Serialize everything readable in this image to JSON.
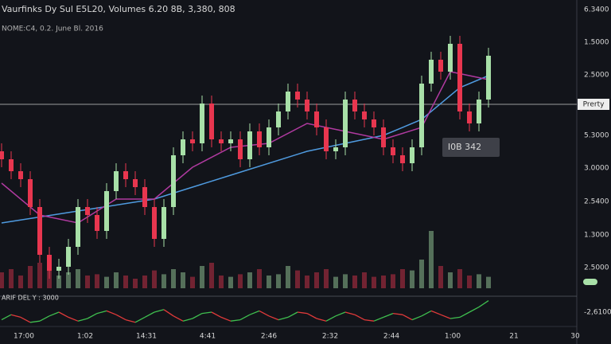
{
  "header": {
    "line1": "Vaurfinks Dy Sul E5L20, Volumes 6.20 8B, 3,380, 808",
    "line2": "NOME:C4, 0.2. June Bl. 2016"
  },
  "price_axis_labels": [
    "6.3400",
    "1.5000",
    "2.5000",
    "5.3000",
    "3.0000",
    "2.5400",
    "1.3000",
    "2.5000",
    "-2,6100"
  ],
  "time_axis_labels": [
    "17:00",
    "1:02",
    "14:31",
    "4:41",
    "2:46",
    "2:32",
    "2:44",
    "1:00",
    "21",
    "30"
  ],
  "crosshair_tag": "Prerty",
  "price_tag": "I0B 342",
  "indicator_label": "ARIF DEL Y : 3000",
  "chart_data": {
    "type": "candlestick",
    "open": [
      170,
      160,
      145,
      135,
      100,
      40,
      20,
      25,
      50,
      100,
      90,
      70,
      120,
      145,
      135,
      125,
      100,
      60,
      100,
      165,
      185,
      180,
      230,
      185,
      180,
      185,
      160,
      195,
      175,
      200,
      220,
      245,
      235,
      220,
      200,
      170,
      175,
      235,
      220,
      210,
      200,
      175,
      165,
      155,
      175,
      255,
      285,
      270,
      305,
      220,
      205,
      235
    ],
    "high": [
      180,
      170,
      155,
      145,
      110,
      50,
      35,
      60,
      110,
      110,
      100,
      130,
      155,
      155,
      145,
      135,
      110,
      110,
      175,
      195,
      195,
      240,
      240,
      195,
      195,
      195,
      205,
      205,
      210,
      230,
      255,
      255,
      245,
      230,
      210,
      185,
      245,
      245,
      230,
      220,
      210,
      185,
      175,
      185,
      265,
      295,
      295,
      315,
      315,
      230,
      245,
      300
    ],
    "low": [
      150,
      135,
      125,
      90,
      30,
      10,
      10,
      15,
      40,
      80,
      60,
      60,
      110,
      125,
      115,
      90,
      50,
      50,
      90,
      155,
      170,
      170,
      175,
      170,
      170,
      150,
      150,
      165,
      165,
      190,
      210,
      225,
      210,
      190,
      160,
      160,
      165,
      210,
      200,
      190,
      165,
      155,
      145,
      145,
      165,
      245,
      260,
      260,
      210,
      195,
      195,
      225
    ],
    "close": [
      160,
      145,
      135,
      100,
      40,
      20,
      25,
      50,
      100,
      90,
      70,
      120,
      145,
      135,
      125,
      100,
      60,
      100,
      165,
      185,
      180,
      230,
      185,
      180,
      185,
      160,
      195,
      175,
      200,
      220,
      245,
      235,
      220,
      200,
      170,
      175,
      235,
      220,
      210,
      200,
      175,
      165,
      155,
      175,
      255,
      285,
      270,
      305,
      220,
      205,
      235,
      290
    ],
    "up_color": "#a8e0a8",
    "down_color": "#e8364f",
    "ylim": [
      0,
      340
    ],
    "overlays": [
      {
        "color": "#4f9be0",
        "index": [
          0,
          8,
          16,
          24,
          32,
          40,
          44,
          48,
          51
        ],
        "values": [
          80,
          95,
          110,
          140,
          170,
          190,
          210,
          250,
          265
        ]
      },
      {
        "color": "#b03aa0",
        "index": [
          0,
          4,
          8,
          12,
          16,
          20,
          24,
          28,
          32,
          36,
          40,
          44,
          47,
          51
        ],
        "values": [
          130,
          90,
          80,
          110,
          110,
          150,
          175,
          180,
          205,
          195,
          185,
          200,
          270,
          260
        ]
      }
    ],
    "volume": {
      "ylim": [
        0,
        100
      ],
      "values": [
        25,
        30,
        20,
        35,
        40,
        30,
        20,
        25,
        30,
        20,
        22,
        18,
        25,
        20,
        15,
        20,
        28,
        22,
        30,
        25,
        18,
        35,
        40,
        20,
        18,
        22,
        25,
        30,
        20,
        22,
        35,
        28,
        20,
        25,
        30,
        18,
        22,
        20,
        25,
        18,
        20,
        22,
        30,
        28,
        45,
        90,
        35,
        25,
        30,
        20,
        22,
        18
      ]
    },
    "oscillator": {
      "ylim": [
        0,
        100
      ],
      "up_color": "#3fbf4f",
      "down_color": "#e03a3a",
      "values": [
        20,
        40,
        30,
        10,
        15,
        35,
        50,
        30,
        15,
        25,
        45,
        55,
        40,
        20,
        10,
        30,
        50,
        60,
        35,
        15,
        25,
        45,
        50,
        30,
        15,
        20,
        40,
        55,
        35,
        20,
        30,
        50,
        45,
        25,
        15,
        35,
        50,
        40,
        20,
        15,
        30,
        45,
        40,
        20,
        35,
        55,
        40,
        25,
        30,
        50,
        70,
        95
      ]
    }
  }
}
